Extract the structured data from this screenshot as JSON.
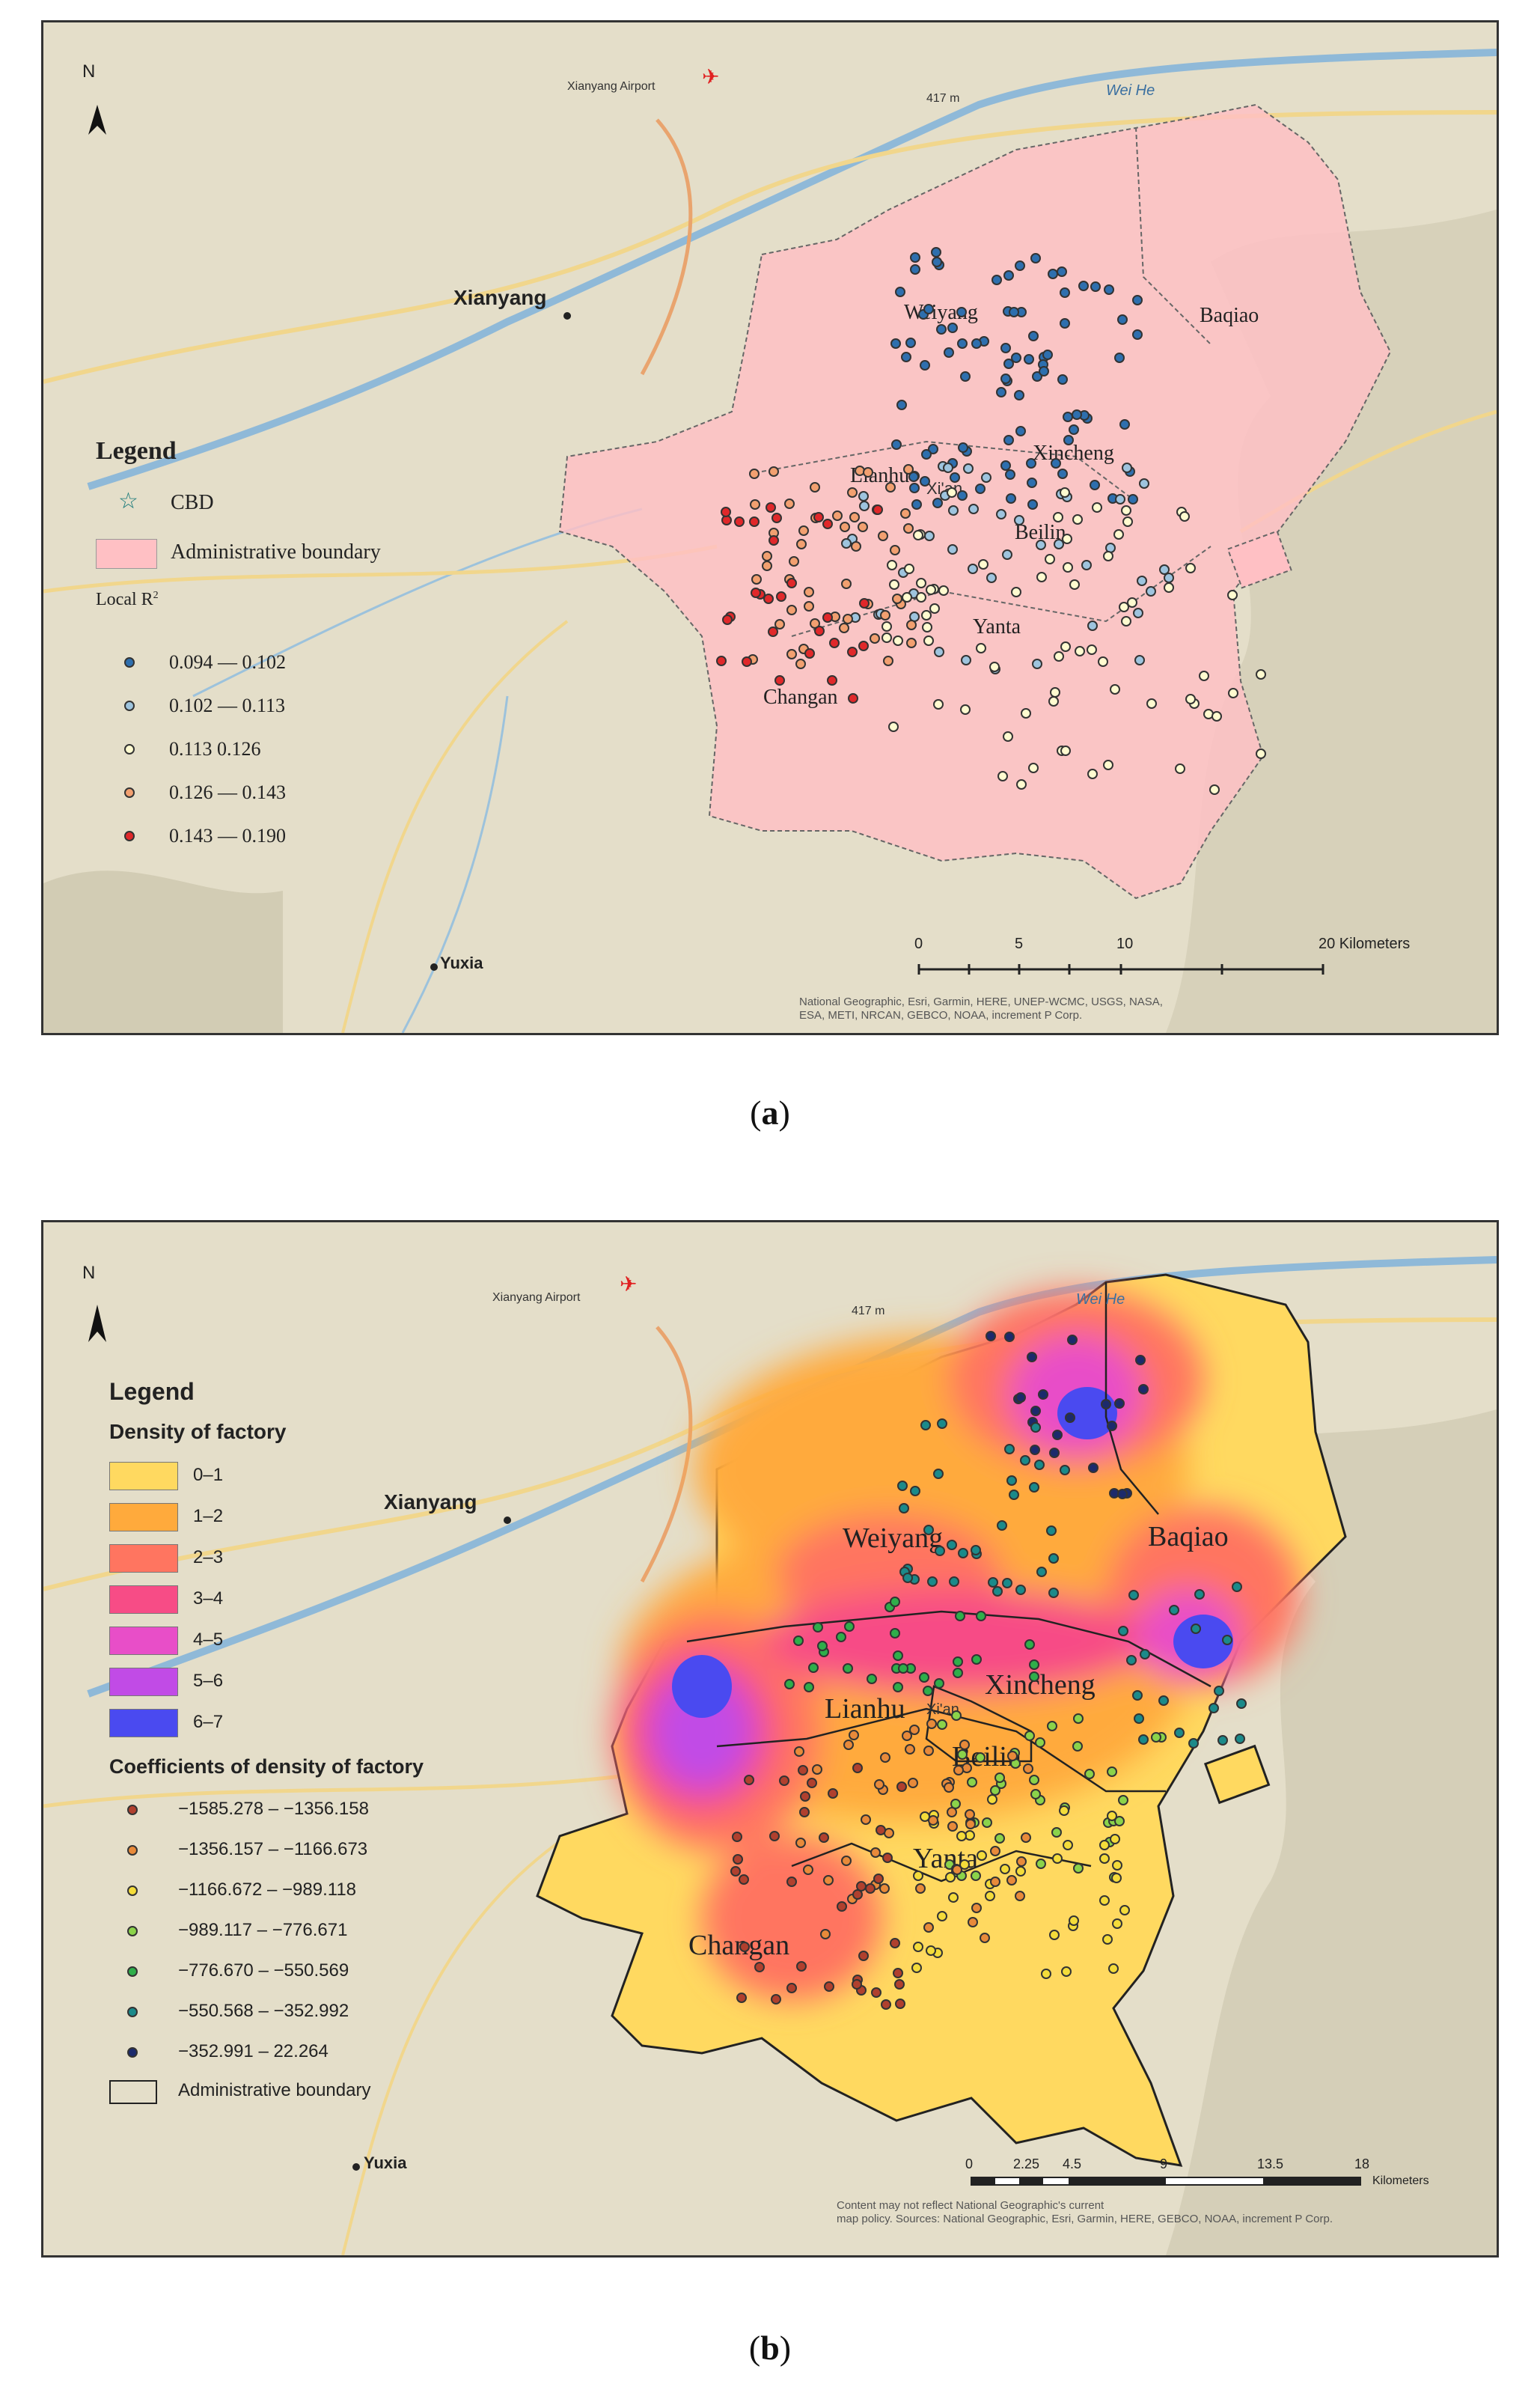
{
  "map_a": {
    "caption_label": "a",
    "north_label": "N",
    "airport": "Xianyang Airport",
    "elevation": "417 m",
    "river": "Wei He",
    "places": {
      "xianyang": "Xianyang",
      "yuxia": "Yuxia",
      "xian": "Xi'an"
    },
    "districts": {
      "weiyang": "Weiyang",
      "baqiao": "Baqiao",
      "xincheng": "Xincheng",
      "lianhu": "Lianhu",
      "beilin": "Beilin",
      "yanta": "Yanta",
      "changan": "Changan"
    },
    "legend": {
      "title": "Legend",
      "cbd": "CBD",
      "boundary": "Administrative boundary",
      "local_r2_title": "Local R",
      "local_r2_sup": "2",
      "classes": [
        {
          "label": "0.094 — 0.102",
          "color": "#2e6fae"
        },
        {
          "label": "0.102 — 0.113",
          "color": "#9ec4de"
        },
        {
          "label": "0.113     0.126",
          "color": "#fffbd0"
        },
        {
          "label": "0.126 — 0.143",
          "color": "#f2a070"
        },
        {
          "label": "0.143 — 0.190",
          "color": "#e0282a"
        }
      ]
    },
    "scale": {
      "ticks": [
        "0",
        "5",
        "10",
        "20 Kilometers"
      ]
    },
    "attribution": [
      "National Geographic, Esri, Garmin, HERE, UNEP-WCMC, USGS, NASA,",
      "ESA, METI, NRCAN, GEBCO, NOAA, increment P Corp."
    ]
  },
  "map_b": {
    "caption_label": "b",
    "north_label": "N",
    "airport": "Xianyang Airport",
    "elevation": "417 m",
    "river": "Wei He",
    "places": {
      "xianyang": "Xianyang",
      "yuxia": "Yuxia",
      "xian": "Xi'an"
    },
    "districts": {
      "weiyang": "Weiyang",
      "baqiao": "Baqiao",
      "xincheng": "Xincheng",
      "lianhu": "Lianhu",
      "beilin": "Beilin",
      "yanta": "Yanta",
      "changan": "Changan"
    },
    "legend": {
      "title": "Legend",
      "density_title": "Density of factory",
      "density_classes": [
        {
          "label": "0–1",
          "color": "#ffd960"
        },
        {
          "label": "1–2",
          "color": "#ffaa3c"
        },
        {
          "label": "2–3",
          "color": "#ff7560"
        },
        {
          "label": "3–4",
          "color": "#f74c86"
        },
        {
          "label": "4–5",
          "color": "#e84ec8"
        },
        {
          "label": "5–6",
          "color": "#c14be6"
        },
        {
          "label": "6–7",
          "color": "#4a4af0"
        }
      ],
      "coef_title": "Coefficients of density of factory",
      "coef_classes": [
        {
          "label": "−1585.278 – −1356.158",
          "color": "#b0402e"
        },
        {
          "label": "−1356.157 – −1166.673",
          "color": "#e88a3a"
        },
        {
          "label": "−1166.672 – −989.118",
          "color": "#f4dc3a"
        },
        {
          "label": "−989.117 – −776.671",
          "color": "#8bd34a"
        },
        {
          "label": "−776.670 – −550.569",
          "color": "#2fae4a"
        },
        {
          "label": "−550.568 – −352.992",
          "color": "#1b8a8a"
        },
        {
          "label": "−352.991 – 22.264",
          "color": "#1c2a6c"
        }
      ],
      "boundary": "Administrative boundary"
    },
    "scale": {
      "ticks": [
        "0",
        "2.25",
        "4.5",
        "9",
        "13.5",
        "18"
      ],
      "unit": "Kilometers"
    },
    "attribution": [
      "Content may not reflect National Geographic's current",
      "map policy. Sources: National Geographic, Esri, Garmin, HERE, GEBCO, NOAA, increment P Corp."
    ]
  }
}
